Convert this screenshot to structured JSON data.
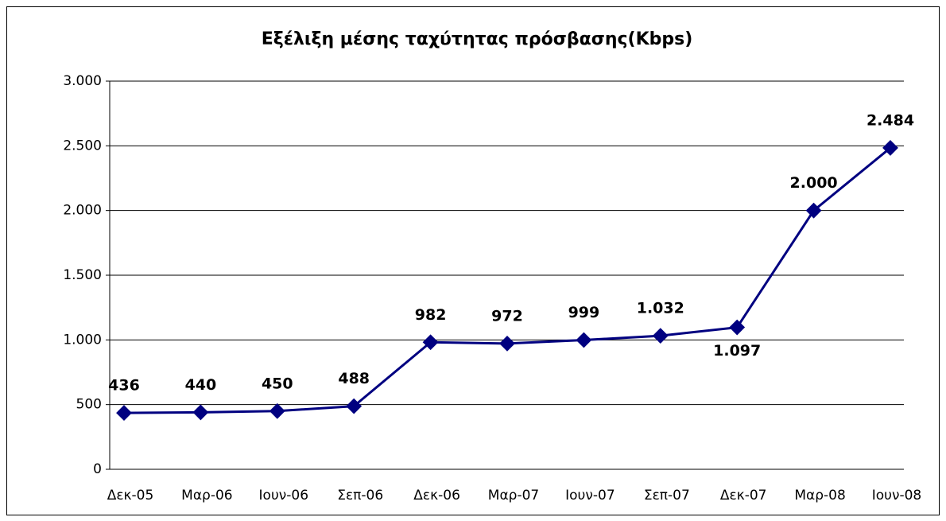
{
  "chart_data": {
    "type": "line",
    "title": "Εξέλιξη μέσης ταχύτητας πρόσβασης(Kbps)",
    "categories": [
      "Δεκ-05",
      "Μαρ-06",
      "Ιουν-06",
      "Σεπ-06",
      "Δεκ-06",
      "Μαρ-07",
      "Ιουν-07",
      "Σεπ-07",
      "Δεκ-07",
      "Μαρ-08",
      "Ιουν-08"
    ],
    "values": [
      436,
      440,
      450,
      488,
      982,
      972,
      999,
      1032,
      1097,
      2000,
      2484
    ],
    "value_labels": [
      "436",
      "440",
      "450",
      "488",
      "982",
      "972",
      "999",
      "1.032",
      "1.097",
      "2.000",
      "2.484"
    ],
    "color": "#000080",
    "ylim": [
      0,
      3000
    ],
    "yticks": [
      0,
      500,
      {
        "value": 1000,
        "label": "1.000"
      },
      {
        "value": 1500,
        "label": "1.500"
      },
      {
        "value": 2000,
        "label": "2.000"
      },
      {
        "value": 2500,
        "label": "2.500"
      },
      {
        "value": 3000,
        "label": "3.000"
      }
    ],
    "grid": true
  }
}
